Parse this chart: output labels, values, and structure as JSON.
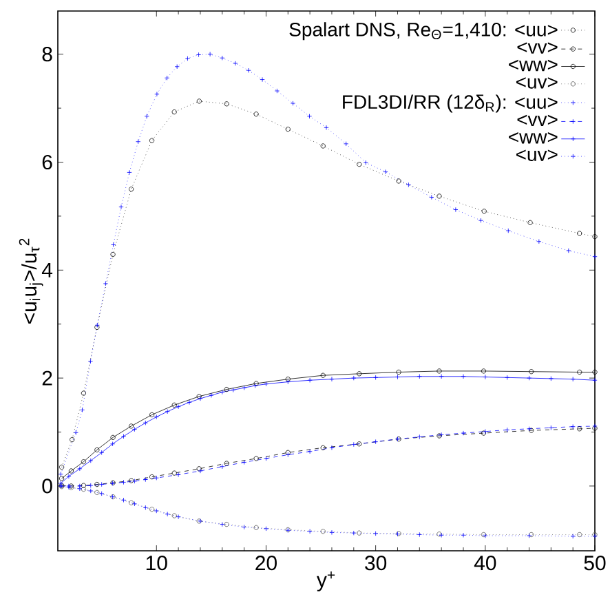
{
  "chart_data": {
    "type": "line",
    "xlabel": "y$^{+}$",
    "ylabel": "<u$_{i}$u$_{j}$>/u$_{τ}$$^{2}$",
    "xlim": [
      1,
      50
    ],
    "ylim": [
      -1.2,
      8.8
    ],
    "xticks": [
      10,
      20,
      30,
      40,
      50
    ],
    "yticks": [
      0,
      2,
      4,
      6,
      8
    ],
    "grid": false,
    "legend": "top right",
    "series": [
      {
        "name": "Spalart DNS, Re$_{Θ}$=1,410: <uu>",
        "color": "#000000",
        "line_style": "dotted",
        "marker": "circle",
        "x": [
          1.35,
          2.3,
          3.35,
          4.57,
          6.03,
          7.7,
          9.58,
          11.63,
          13.9,
          16.4,
          19.1,
          22.0,
          25.2,
          28.5,
          32.1,
          35.8,
          39.9,
          44.1,
          48.6,
          50
        ],
        "values": [
          0.35,
          0.86,
          1.72,
          2.94,
          4.29,
          5.5,
          6.4,
          6.93,
          7.13,
          7.08,
          6.89,
          6.61,
          6.3,
          5.96,
          5.65,
          5.37,
          5.09,
          4.88,
          4.68,
          4.62
        ]
      },
      {
        "name": "<vv>",
        "color": "#000000",
        "line_style": "dashed",
        "marker": "circle",
        "x": [
          1.35,
          2.22,
          3.35,
          4.57,
          6.03,
          7.7,
          9.58,
          11.63,
          13.89,
          16.4,
          19.1,
          22.0,
          25.2,
          28.5,
          32.1,
          35.8,
          39.85,
          44.2,
          48.6,
          50
        ],
        "values": [
          0.01,
          0.0,
          0.01,
          0.03,
          0.06,
          0.1,
          0.17,
          0.24,
          0.32,
          0.42,
          0.51,
          0.62,
          0.71,
          0.78,
          0.87,
          0.93,
          0.98,
          1.03,
          1.06,
          1.07
        ]
      },
      {
        "name": "<ww>",
        "color": "#000000",
        "line_style": "solid",
        "marker": "circle",
        "x": [
          1.35,
          2.22,
          3.35,
          4.57,
          6.03,
          7.7,
          9.58,
          11.63,
          13.89,
          16.4,
          19.1,
          22.0,
          25.2,
          28.5,
          32.1,
          35.8,
          39.85,
          44.2,
          48.6,
          50
        ],
        "values": [
          0.14,
          0.28,
          0.45,
          0.67,
          0.9,
          1.11,
          1.32,
          1.5,
          1.66,
          1.79,
          1.9,
          1.98,
          2.05,
          2.08,
          2.11,
          2.13,
          2.13,
          2.12,
          2.11,
          2.11
        ]
      },
      {
        "name": "<uv>",
        "color": "#555555",
        "line_style": "dotted",
        "marker": "circle",
        "x": [
          1.35,
          2.22,
          3.35,
          4.57,
          6.03,
          7.7,
          9.58,
          11.63,
          13.89,
          16.4,
          19.1,
          22.0,
          25.2,
          28.5,
          32.1,
          35.8,
          39.85,
          44.2,
          48.6,
          50
        ],
        "values": [
          -0.01,
          -0.03,
          -0.06,
          -0.12,
          -0.2,
          -0.31,
          -0.43,
          -0.55,
          -0.65,
          -0.71,
          -0.77,
          -0.81,
          -0.84,
          -0.87,
          -0.88,
          -0.89,
          -0.9,
          -0.9,
          -0.9,
          -0.9
        ]
      },
      {
        "name": "FDL3DI/RR  (12δ$_{R}$): <uu>",
        "color": "#0000ff",
        "line_style": "dotted",
        "marker": "cross",
        "x": [
          1.27,
          2.65,
          3.23,
          3.98,
          4.6,
          5.36,
          6.07,
          6.78,
          7.53,
          8.33,
          9.12,
          10.04,
          10.96,
          11.88,
          12.84,
          13.85,
          14.89,
          16.0,
          17.2,
          18.4,
          19.66,
          21.0,
          22.45,
          23.96,
          25.5,
          27.3,
          29.1,
          30.9,
          33.0,
          35.1,
          37.3,
          39.6,
          42.1,
          44.9,
          47.6,
          50
        ],
        "values": [
          0.22,
          0.99,
          1.41,
          2.31,
          2.98,
          3.75,
          4.47,
          5.17,
          5.81,
          6.38,
          6.85,
          7.26,
          7.56,
          7.77,
          7.92,
          7.99,
          8.0,
          7.93,
          7.83,
          7.7,
          7.53,
          7.32,
          7.09,
          6.85,
          6.64,
          6.34,
          5.99,
          5.82,
          5.58,
          5.35,
          5.12,
          4.92,
          4.73,
          4.53,
          4.36,
          4.25
        ]
      },
      {
        "name": "<vv>",
        "color": "#0000ff",
        "line_style": "dashed",
        "marker": "cross",
        "x": [
          1.3,
          2,
          3,
          4,
          5,
          6,
          7,
          8,
          9,
          10,
          12,
          14,
          16,
          18,
          20,
          22,
          24,
          26,
          28,
          30,
          32,
          34,
          36,
          38,
          40,
          42,
          44,
          46,
          48,
          50
        ],
        "values": [
          0.0,
          0.0,
          0.0,
          0.01,
          0.03,
          0.05,
          0.07,
          0.09,
          0.12,
          0.15,
          0.21,
          0.28,
          0.36,
          0.44,
          0.51,
          0.58,
          0.64,
          0.71,
          0.77,
          0.82,
          0.87,
          0.91,
          0.95,
          0.98,
          1.01,
          1.04,
          1.06,
          1.08,
          1.1,
          1.11
        ]
      },
      {
        "name": "<ww>",
        "color": "#0000ff",
        "line_style": "solid",
        "marker": "cross",
        "x": [
          1.26,
          2,
          3,
          4,
          5,
          6,
          7,
          8,
          9,
          10,
          11,
          12,
          13,
          14,
          15,
          16,
          17,
          18,
          19,
          20,
          22,
          24,
          26,
          28,
          30,
          32,
          34,
          36,
          38,
          40,
          42,
          44,
          46,
          48,
          50
        ],
        "values": [
          0.05,
          0.18,
          0.32,
          0.47,
          0.62,
          0.78,
          0.92,
          1.05,
          1.17,
          1.28,
          1.38,
          1.47,
          1.55,
          1.62,
          1.68,
          1.74,
          1.78,
          1.82,
          1.86,
          1.89,
          1.93,
          1.96,
          1.98,
          2.0,
          2.01,
          2.02,
          2.03,
          2.03,
          2.03,
          2.02,
          2.01,
          2.0,
          1.99,
          1.98,
          1.96
        ]
      },
      {
        "name": "<uv>",
        "color": "#0000ff",
        "line_style": "dotted",
        "marker": "cross",
        "x": [
          1.3,
          2,
          3,
          4,
          5,
          6,
          7,
          8,
          9,
          10,
          11,
          12,
          14,
          16,
          18,
          20,
          22,
          24,
          26,
          28,
          30,
          32,
          34,
          36,
          38,
          40,
          44,
          48,
          50
        ],
        "values": [
          0.0,
          -0.02,
          -0.05,
          -0.09,
          -0.14,
          -0.2,
          -0.26,
          -0.33,
          -0.4,
          -0.46,
          -0.52,
          -0.57,
          -0.65,
          -0.71,
          -0.76,
          -0.79,
          -0.82,
          -0.84,
          -0.86,
          -0.87,
          -0.88,
          -0.89,
          -0.9,
          -0.91,
          -0.91,
          -0.92,
          -0.92,
          -0.93,
          -0.93
        ]
      }
    ]
  }
}
